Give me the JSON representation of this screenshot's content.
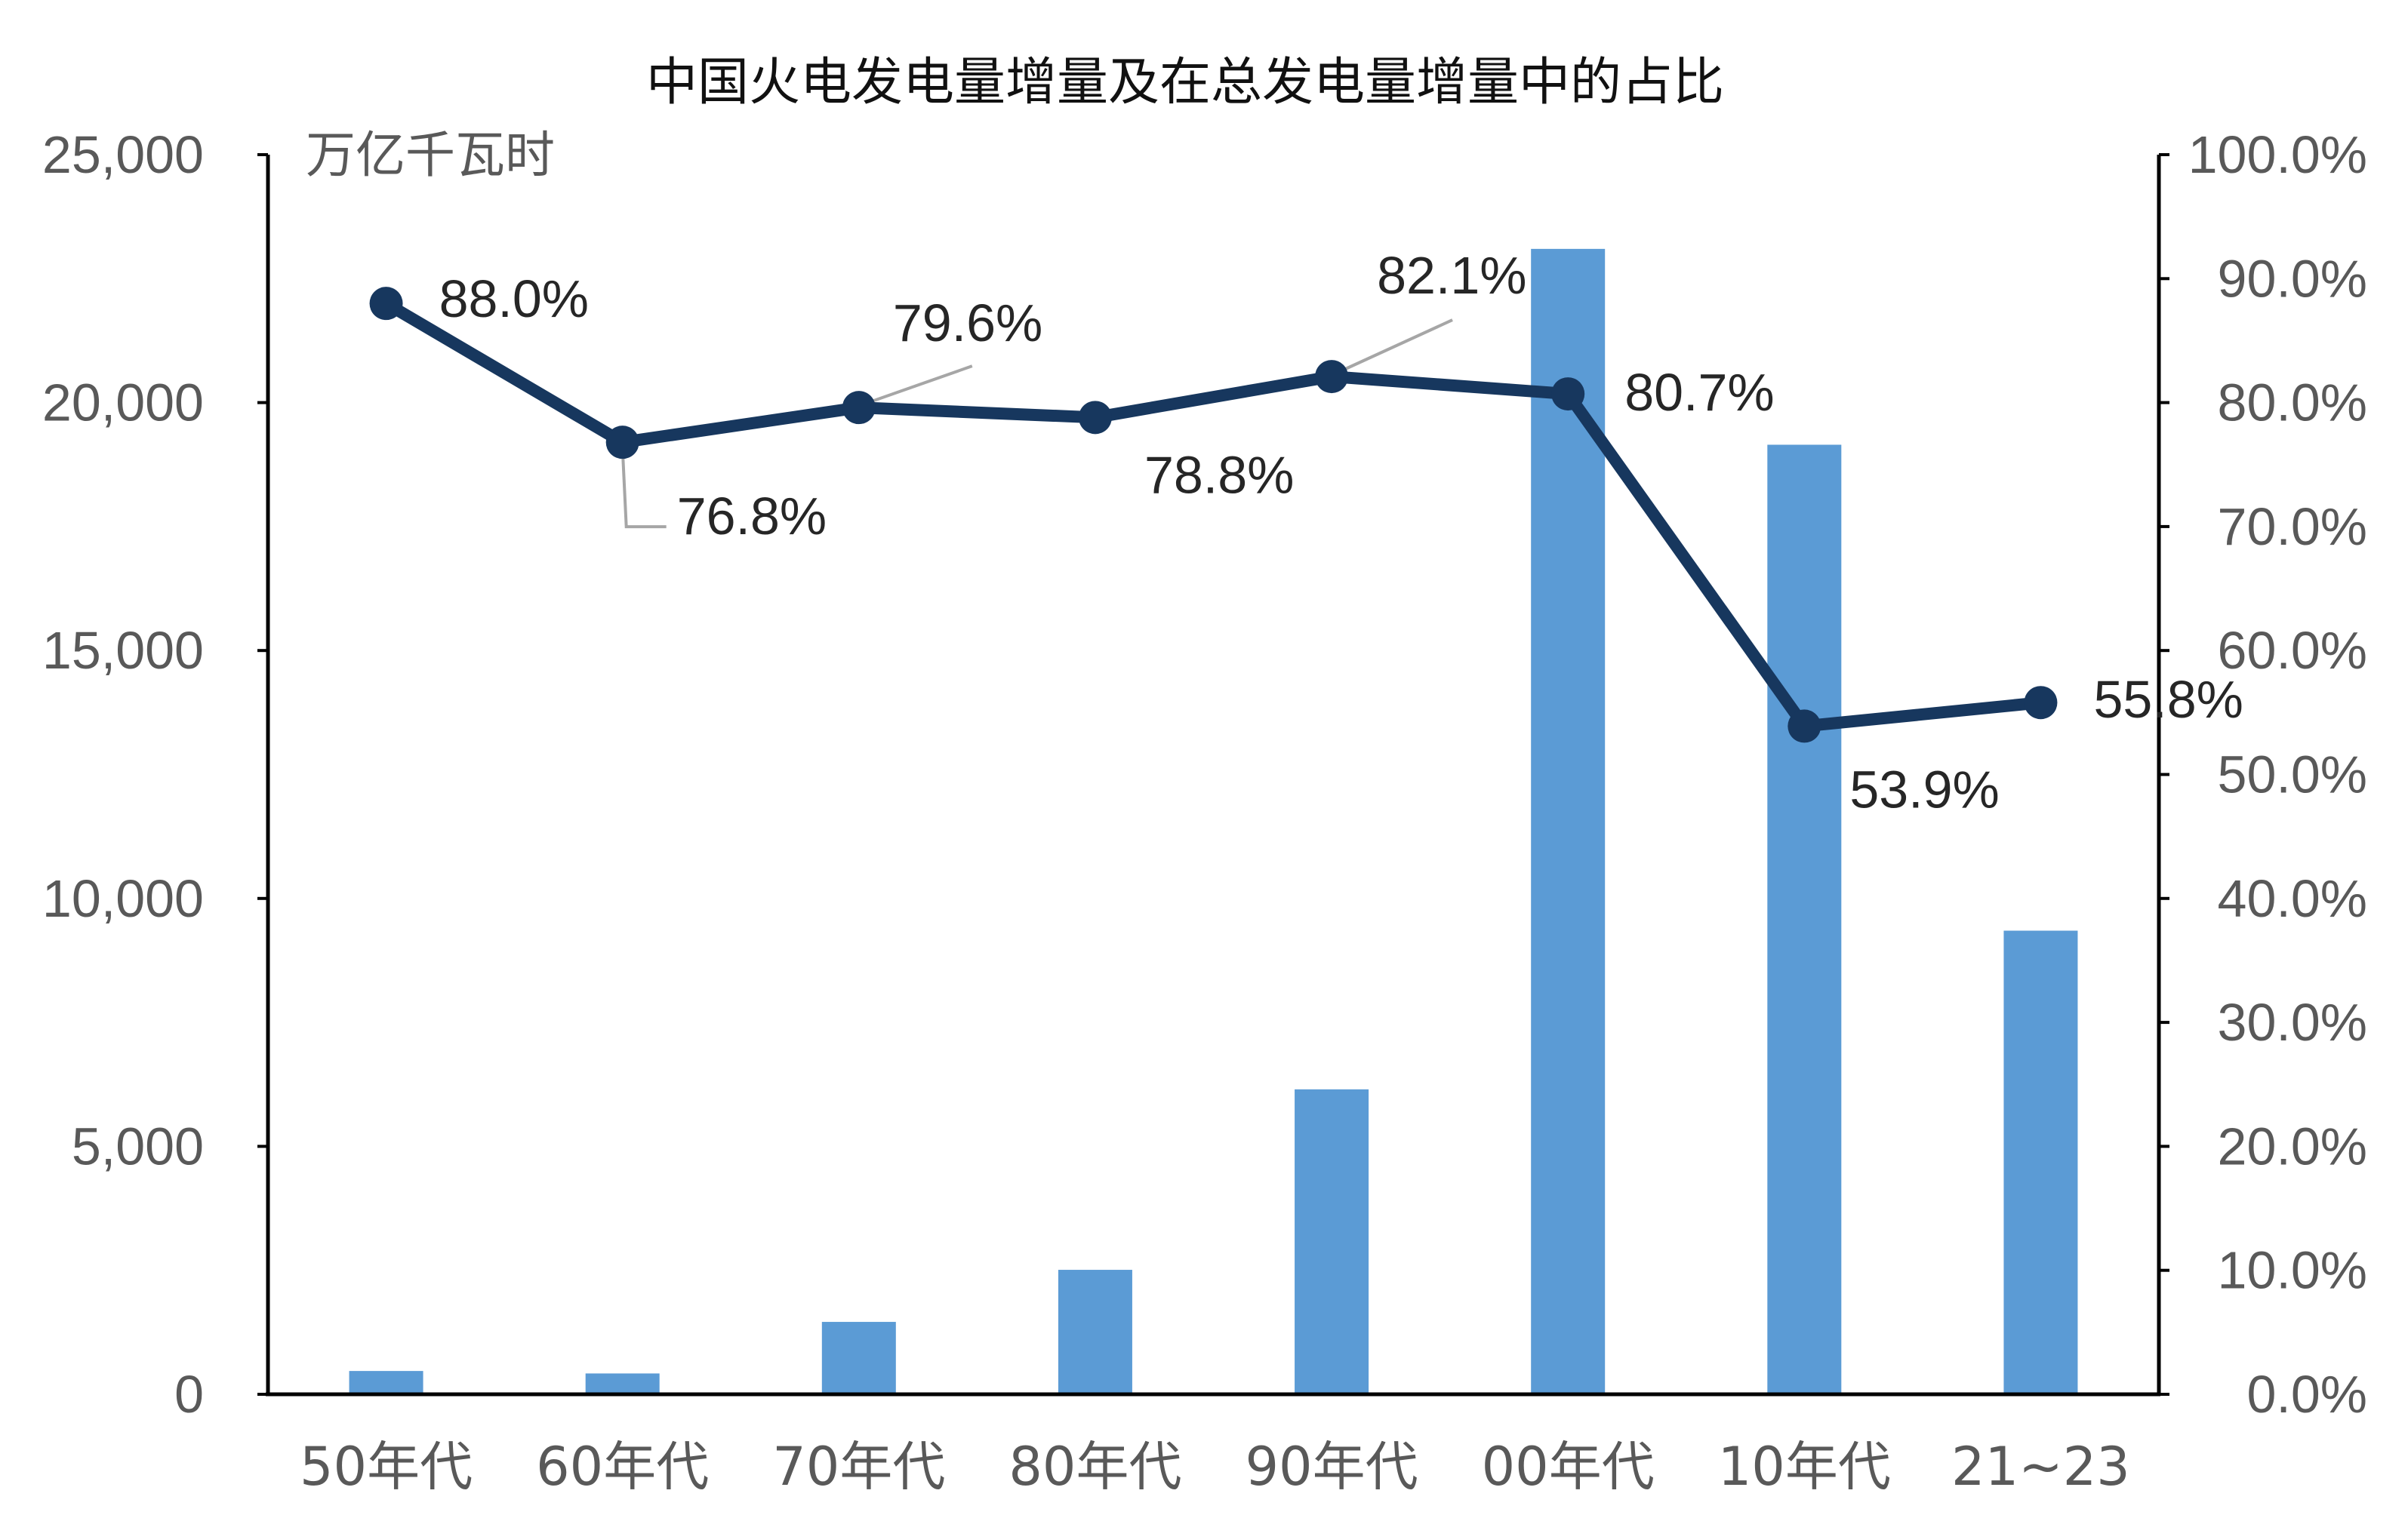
{
  "chart_data": {
    "type": "bar",
    "title": "中国火电发电量增量及在总发电量增量中的占比",
    "unit_label": "万亿千瓦时",
    "categories": [
      "50年代",
      "60年代",
      "70年代",
      "80年代",
      "90年代",
      "00年代",
      "10年代",
      "21~23"
    ],
    "series": [
      {
        "type": "bar",
        "axis": "left",
        "color": "#5B9BD5",
        "values": [
          470,
          420,
          1460,
          2510,
          6150,
          23100,
          19150,
          9350
        ]
      },
      {
        "type": "line",
        "axis": "right",
        "color": "#17375E",
        "values": [
          88.0,
          76.8,
          79.6,
          78.8,
          82.1,
          80.7,
          53.9,
          55.8
        ],
        "labels": [
          "88.0%",
          "76.8%",
          "79.6%",
          "78.8%",
          "82.1%",
          "80.7%",
          "53.9%",
          "55.8%"
        ]
      }
    ],
    "y_left": {
      "min": 0,
      "max": 25000,
      "ticks": [
        0,
        5000,
        10000,
        15000,
        20000,
        25000
      ],
      "tick_labels": [
        "0",
        "5,000",
        "10,000",
        "15,000",
        "20,000",
        "25,000"
      ]
    },
    "y_right": {
      "min": 0,
      "max": 100,
      "ticks": [
        0,
        10,
        20,
        30,
        40,
        50,
        60,
        70,
        80,
        90,
        100
      ],
      "tick_labels": [
        "0.0%",
        "10.0%",
        "20.0%",
        "30.0%",
        "40.0%",
        "50.0%",
        "60.0%",
        "70.0%",
        "80.0%",
        "90.0%",
        "100.0%"
      ]
    },
    "grid": false,
    "legend": "none",
    "leader_color": "#A6A6A6"
  }
}
